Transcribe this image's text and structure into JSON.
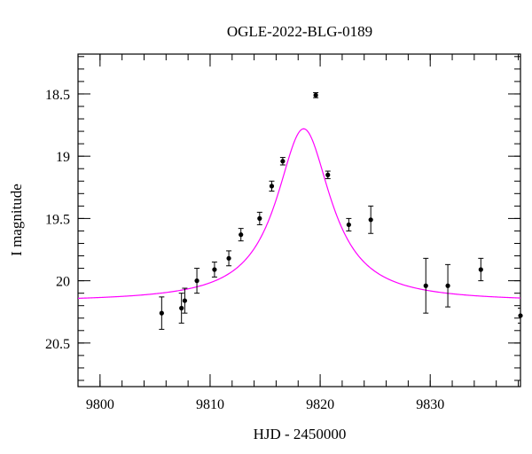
{
  "chart_data": {
    "type": "scatter",
    "title": "OGLE-2022-BLG-0189",
    "xlabel": "HJD - 2450000",
    "ylabel": "I magnitude",
    "xlim": [
      9798.0,
      9838.2
    ],
    "ylim": [
      20.85,
      18.18
    ],
    "y_inverted": true,
    "xticks": [
      9800,
      9810,
      9820,
      9830
    ],
    "xtick_labels": [
      "9800",
      "9810",
      "9820",
      "9830"
    ],
    "yticks": [
      18.5,
      19,
      19.5,
      20,
      20.5
    ],
    "ytick_labels": [
      "18.5",
      "19",
      "19.5",
      "20",
      "20.5"
    ],
    "x_minor_step": 2,
    "y_minor_step": 0.1,
    "grid": false,
    "colors": {
      "model": "#ff00ff",
      "points": "#000000"
    },
    "model_curve": {
      "name": "",
      "t0": 9818.5,
      "m_peak": 18.78,
      "m_base": 20.17,
      "tE": 3.0
    },
    "series": [
      {
        "name": "",
        "points": [
          {
            "x": 9805.6,
            "y": 20.26,
            "err": 0.13
          },
          {
            "x": 9807.4,
            "y": 20.22,
            "err": 0.12
          },
          {
            "x": 9807.7,
            "y": 20.16,
            "err": 0.1
          },
          {
            "x": 9808.8,
            "y": 20.0,
            "err": 0.1
          },
          {
            "x": 9810.4,
            "y": 19.91,
            "err": 0.06
          },
          {
            "x": 9811.7,
            "y": 19.82,
            "err": 0.06
          },
          {
            "x": 9812.8,
            "y": 19.63,
            "err": 0.05
          },
          {
            "x": 9814.5,
            "y": 19.5,
            "err": 0.05
          },
          {
            "x": 9815.6,
            "y": 19.24,
            "err": 0.04
          },
          {
            "x": 9816.6,
            "y": 19.04,
            "err": 0.03
          },
          {
            "x": 9819.6,
            "y": 18.51,
            "err": 0.02
          },
          {
            "x": 9820.7,
            "y": 19.15,
            "err": 0.03
          },
          {
            "x": 9822.6,
            "y": 19.55,
            "err": 0.05
          },
          {
            "x": 9824.6,
            "y": 19.51,
            "err": 0.11
          },
          {
            "x": 9829.6,
            "y": 20.04,
            "err": 0.22
          },
          {
            "x": 9831.6,
            "y": 20.04,
            "err": 0.17
          },
          {
            "x": 9834.6,
            "y": 19.91,
            "err": 0.09
          },
          {
            "x": 9838.2,
            "y": 20.28,
            "err": 0.06
          }
        ]
      }
    ]
  }
}
